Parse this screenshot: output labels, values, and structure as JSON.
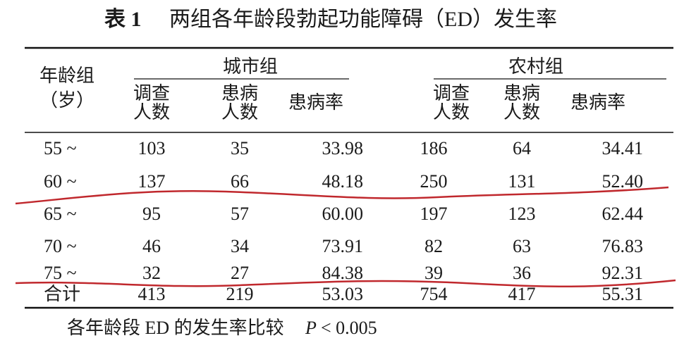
{
  "title": {
    "label": "表 1",
    "text": "两组各年龄段勃起功能障碍（ED）发生率"
  },
  "table": {
    "age_header": [
      "年龄组",
      "（岁）"
    ],
    "groups": [
      {
        "name": "城市组",
        "columns": [
          [
            "调查",
            "人数"
          ],
          [
            "患病",
            "人数"
          ],
          [
            "患病率"
          ]
        ]
      },
      {
        "name": "农村组",
        "columns": [
          [
            "调查",
            "人数"
          ],
          [
            "患病",
            "人数"
          ],
          [
            "患病率"
          ]
        ]
      }
    ],
    "rows": [
      [
        "55 ~",
        "103",
        "35",
        "33.98",
        "186",
        "64",
        "34.41"
      ],
      [
        "60 ~",
        "137",
        "66",
        "48.18",
        "250",
        "131",
        "52.40"
      ],
      [
        "65 ~",
        "95",
        "57",
        "60.00",
        "197",
        "123",
        "62.44"
      ],
      [
        "70 ~",
        "46",
        "34",
        "73.91",
        "82",
        "63",
        "76.83"
      ],
      [
        "75 ~",
        "32",
        "27",
        "84.38",
        "39",
        "36",
        "92.31"
      ],
      [
        "合计",
        "413",
        "219",
        "53.03",
        "754",
        "417",
        "55.31"
      ]
    ]
  },
  "footnote": {
    "text": "各年龄段 ED 的发生率比较",
    "p": "P",
    "condition": "< 0.005"
  }
}
